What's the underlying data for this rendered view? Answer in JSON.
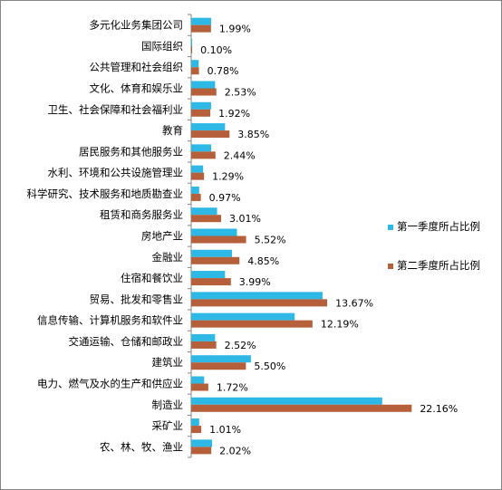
{
  "chart_data": {
    "type": "bar",
    "orientation": "horizontal",
    "categories": [
      "多元化业务集团公司",
      "国际组织",
      "公共管理和社会组织",
      "文化、体育和娱乐业",
      "卫生、社会保障和社会福利业",
      "教育",
      "居民服务和其他服务业",
      "水利、环境和公共设施管理业",
      "科学研究、技术服务和地质勘查业",
      "租赁和商务服务业",
      "房地产业",
      "金融业",
      "住宿和餐饮业",
      "贸易、批发和零售业",
      "信息传输、计算机服务和软件业",
      "交通运输、仓储和邮政业",
      "建筑业",
      "电力、燃气及水的生产和供应业",
      "制造业",
      "采矿业",
      "农、林、牧、渔业"
    ],
    "series": [
      {
        "name": "第一季度所占比例",
        "color": "#2EB8E6",
        "values": [
          2.0,
          0.1,
          0.75,
          2.4,
          2.0,
          3.4,
          2.0,
          1.2,
          0.8,
          2.6,
          4.6,
          4.1,
          3.4,
          13.2,
          10.4,
          2.4,
          6.0,
          1.3,
          19.2,
          0.8,
          2.1
        ]
      },
      {
        "name": "第二季度所占比例",
        "color": "#B5603A",
        "values": [
          1.99,
          0.1,
          0.78,
          2.53,
          1.92,
          3.85,
          2.44,
          1.29,
          0.97,
          3.01,
          5.52,
          4.85,
          3.99,
          13.67,
          12.19,
          2.52,
          5.5,
          1.72,
          22.16,
          1.01,
          2.02
        ]
      }
    ],
    "data_labels": [
      "1.99%",
      "0.10%",
      "0.78%",
      "2.53%",
      "1.92%",
      "3.85%",
      "2.44%",
      "1.29%",
      "0.97%",
      "3.01%",
      "5.52%",
      "4.85%",
      "3.99%",
      "13.67%",
      "12.19%",
      "2.52%",
      "5.50%",
      "1.72%",
      "22.16%",
      "1.01%",
      "2.02%"
    ],
    "xlim": [
      0,
      25
    ],
    "grid": false,
    "legend_position": "right"
  }
}
